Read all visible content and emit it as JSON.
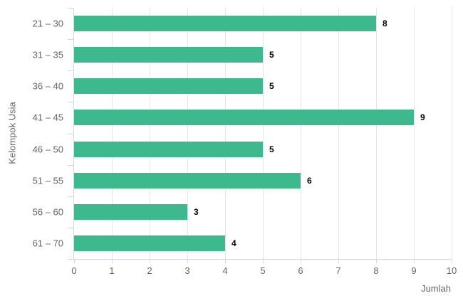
{
  "chart_data": {
    "type": "bar",
    "orientation": "horizontal",
    "categories": [
      "21 – 30",
      "31 – 35",
      "36 – 40",
      "41 – 45",
      "46 – 50",
      "51 – 55",
      "56 – 60",
      "61 – 70"
    ],
    "values": [
      8,
      5,
      5,
      9,
      5,
      6,
      3,
      4
    ],
    "xlabel": "Jumlah",
    "ylabel": "Kelompok Usia",
    "xlim": [
      0,
      10
    ],
    "x_ticks": [
      0,
      1,
      2,
      3,
      4,
      5,
      6,
      7,
      8,
      9,
      10
    ],
    "grid": true,
    "legend": false,
    "data_labels": true,
    "colors": {
      "bar": "#3eb98d",
      "grid": "#e6e6e6",
      "axis": "#ccd6eb",
      "label": "#666666",
      "value_label": "#000000",
      "background": "#ffffff"
    }
  }
}
